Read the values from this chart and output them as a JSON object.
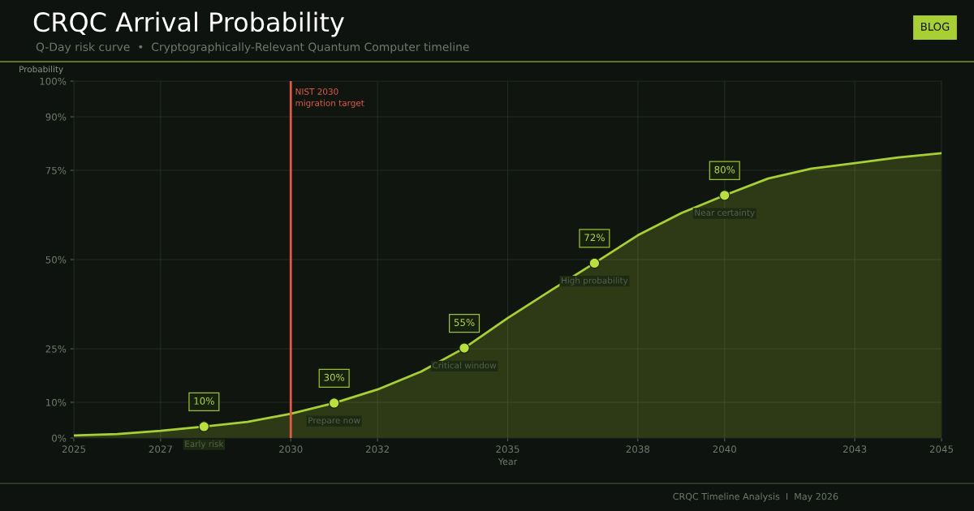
{
  "chart_data": {
    "type": "area",
    "title": "CRQC Arrival Probability",
    "subtitle": "Q-Day risk curve  •  Cryptographically-Relevant Quantum Computer timeline",
    "xlabel": "Year",
    "ylabel": "Probability",
    "series": [
      {
        "color": "#a8d034",
        "x": [
          2025,
          2026,
          2027,
          2028,
          2029,
          2030,
          2031,
          2032,
          2033,
          2034,
          2035,
          2036,
          2037,
          2038,
          2039,
          2040,
          2041,
          2042,
          2043,
          2044,
          2045
        ],
        "values": [
          0.7,
          1.1,
          2.0,
          3.2,
          4.5,
          6.8,
          9.8,
          13.6,
          18.6,
          25.2,
          33.6,
          41.4,
          49,
          56.8,
          63,
          68,
          72.7,
          75.5,
          77,
          78.6,
          79.8
        ]
      },
      {
        "type": "scatter",
        "marker": "circle",
        "color": "#b9de3e",
        "x": [
          2028,
          2031,
          2034,
          2037,
          2040
        ],
        "values": [
          3.2,
          9.8,
          25.2,
          49,
          68
        ]
      }
    ],
    "annotations": [
      {
        "text": "10%",
        "x": 2028,
        "y": 3.2
      },
      {
        "text": "Early risk",
        "x": 2028,
        "y": 3.2
      },
      {
        "text": "30%",
        "x": 2031,
        "y": 9.8
      },
      {
        "text": "Prepare now",
        "x": 2031,
        "y": 9.8
      },
      {
        "text": "55%",
        "x": 2034,
        "y": 25.2
      },
      {
        "text": "Critical window",
        "x": 2034,
        "y": 25.2
      },
      {
        "text": "72%",
        "x": 2037,
        "y": 49
      },
      {
        "text": "High probability",
        "x": 2037,
        "y": 49
      },
      {
        "text": "80%",
        "x": 2040,
        "y": 68
      },
      {
        "text": "Near certainty",
        "x": 2040,
        "y": 68
      },
      "BLOG",
      "CRQC Timeline Analysis  I  May 2026"
    ],
    "ref_lines": [
      {
        "axis": "x",
        "value": 2030,
        "label": "NIST 2030\nmigration target",
        "color": "#e05a47"
      }
    ],
    "xlim": [
      2025,
      2045
    ],
    "ylim": [
      0,
      100
    ],
    "xticks": [
      2025,
      2027,
      2030,
      2032,
      2035,
      2038,
      2040,
      2043,
      2045
    ],
    "yticks": [
      {
        "value": 0,
        "label": "0%"
      },
      {
        "value": 10,
        "label": "10%"
      },
      {
        "value": 25,
        "label": "25%"
      },
      {
        "value": 50,
        "label": "50%"
      },
      {
        "value": 75,
        "label": "75%"
      },
      {
        "value": 90,
        "label": "90%"
      },
      {
        "value": 100,
        "label": "100%"
      }
    ],
    "grid": true
  }
}
